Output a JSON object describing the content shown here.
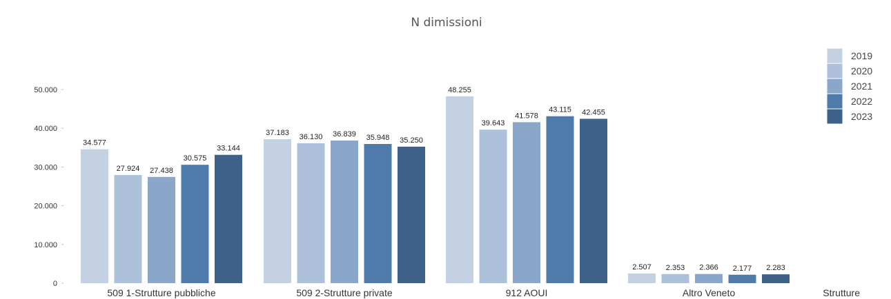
{
  "chart_data": {
    "type": "bar",
    "title": "N dimissioni",
    "xlabel": "Strutture",
    "ylabel": "",
    "ylim": [
      0,
      60000
    ],
    "yticks": [
      0,
      10000,
      20000,
      30000,
      40000,
      50000
    ],
    "ytick_labels": [
      "0",
      "10.000",
      "20.000",
      "30.000",
      "40.000",
      "50.000"
    ],
    "categories": [
      "509 1-Strutture pubbliche",
      "509 2-Strutture private",
      "912 AOUI",
      "Altro Veneto"
    ],
    "legend_position": "top-right",
    "grid": false,
    "series": [
      {
        "name": "2019",
        "color": "#c3d1e3",
        "values": [
          34577,
          37183,
          48255,
          2507
        ],
        "labels": [
          "34.577",
          "37.183",
          "48.255",
          "2.507"
        ]
      },
      {
        "name": "2020",
        "color": "#adc1da",
        "values": [
          27924,
          36130,
          39643,
          2353
        ],
        "labels": [
          "27.924",
          "36.130",
          "39.643",
          "2.353"
        ]
      },
      {
        "name": "2021",
        "color": "#8aa6c9",
        "values": [
          27438,
          36839,
          41578,
          2366
        ],
        "labels": [
          "27.438",
          "36.839",
          "41.578",
          "2.366"
        ]
      },
      {
        "name": "2022",
        "color": "#4f7bab",
        "values": [
          30575,
          35948,
          43115,
          2177
        ],
        "labels": [
          "30.575",
          "35.948",
          "43.115",
          "2.177"
        ]
      },
      {
        "name": "2023",
        "color": "#3e6289",
        "values": [
          33144,
          35250,
          42455,
          2283
        ],
        "labels": [
          "33.144",
          "35.250",
          "42.455",
          "2.283"
        ]
      }
    ]
  }
}
